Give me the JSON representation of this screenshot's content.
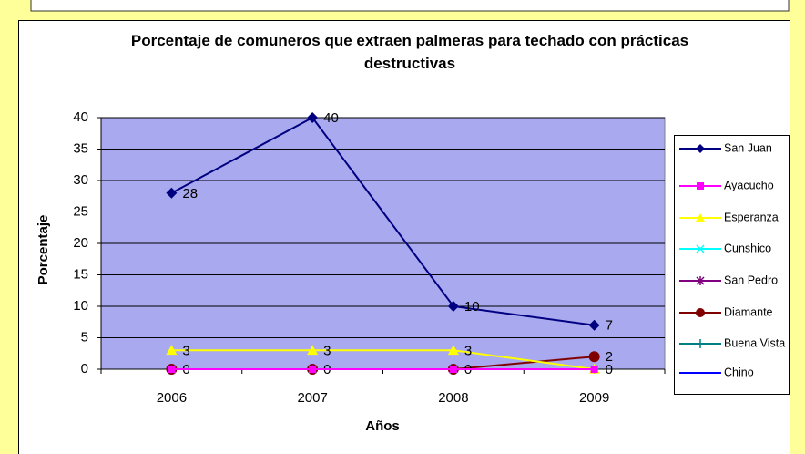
{
  "chart_data": {
    "type": "line",
    "title": "Porcentaje de comuneros que extraen palmeras para techado con prácticas destructivas",
    "x_label": "Años",
    "y_label": "Porcentaje",
    "categories": [
      "2006",
      "2007",
      "2008",
      "2009"
    ],
    "ylim": [
      0,
      40
    ],
    "yticks": [
      0,
      5,
      10,
      15,
      20,
      25,
      30,
      35,
      40
    ],
    "grid": true,
    "legend": "right",
    "series": [
      {
        "name": "San Juan",
        "color": "#000080",
        "marker": "diamond",
        "values": [
          28,
          40,
          10,
          7
        ],
        "labels": true
      },
      {
        "name": "Ayacucho",
        "color": "#ff00ff",
        "marker": "square",
        "values": [
          0,
          0,
          0,
          0
        ]
      },
      {
        "name": "Esperanza",
        "color": "#ffff00",
        "marker": "triangle",
        "values": [
          3,
          3,
          3,
          0
        ],
        "labels": true
      },
      {
        "name": "Cunshico",
        "color": "#00ffff",
        "marker": "x",
        "values": [
          0,
          0,
          0,
          0
        ]
      },
      {
        "name": "San Pedro",
        "color": "#800080",
        "marker": "star",
        "values": [
          0,
          0,
          0,
          0
        ]
      },
      {
        "name": "Diamante",
        "color": "#800000",
        "marker": "circle",
        "values": [
          0,
          0,
          0,
          2
        ],
        "labels": true
      },
      {
        "name": "Buena Vista",
        "color": "#008080",
        "marker": "plus",
        "values": [
          0,
          0,
          0,
          0
        ]
      },
      {
        "name": "Chino",
        "color": "#0000ff",
        "marker": "none",
        "values": [
          0,
          0,
          0,
          0
        ]
      }
    ]
  }
}
